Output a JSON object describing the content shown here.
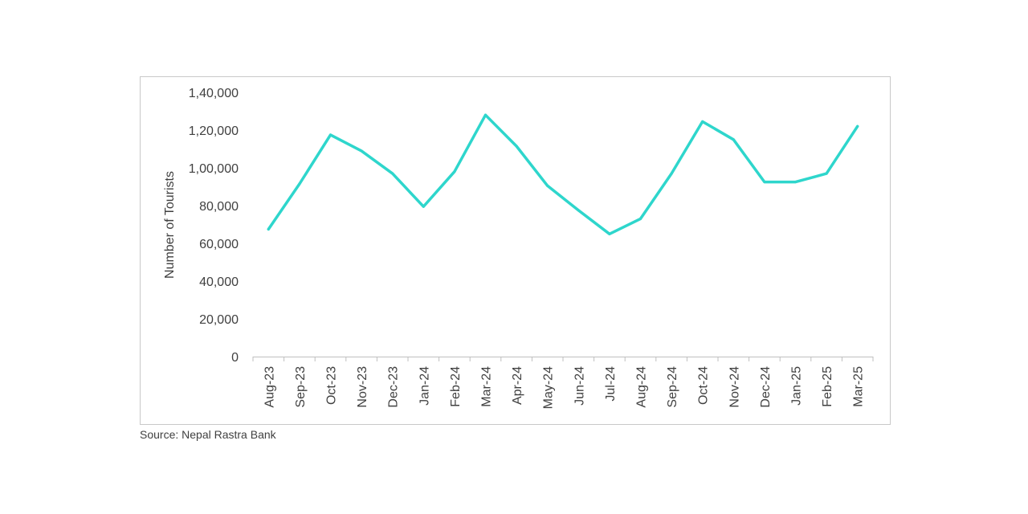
{
  "chart_data": {
    "type": "line",
    "title": "",
    "xlabel": "",
    "ylabel": "Number of Tourists",
    "ylim": [
      0,
      140000
    ],
    "yticks": [
      0,
      20000,
      40000,
      60000,
      80000,
      100000,
      120000,
      140000
    ],
    "ytick_labels": [
      "0",
      "20,000",
      "40,000",
      "60,000",
      "80,000",
      "1,00,000",
      "1,20,000",
      "1,40,000"
    ],
    "grid": false,
    "legend": "none",
    "categories": [
      "Aug-23",
      "Sep-23",
      "Oct-23",
      "Nov-23",
      "Dec-23",
      "Jan-24",
      "Feb-24",
      "Mar-24",
      "Apr-24",
      "May-24",
      "Jun-24",
      "Jul-24",
      "Aug-24",
      "Sep-24",
      "Oct-24",
      "Nov-24",
      "Dec-24",
      "Jan-25",
      "Feb-25",
      "Mar-25"
    ],
    "series": [
      {
        "color": "#2ED6CC",
        "values": [
          67500,
          91500,
          117500,
          109000,
          97000,
          79500,
          98000,
          128000,
          111500,
          90500,
          77500,
          65000,
          73000,
          97000,
          124500,
          115000,
          92500,
          92500,
          97000,
          122000
        ]
      }
    ]
  },
  "source": "Source: Nepal Rastra Bank"
}
